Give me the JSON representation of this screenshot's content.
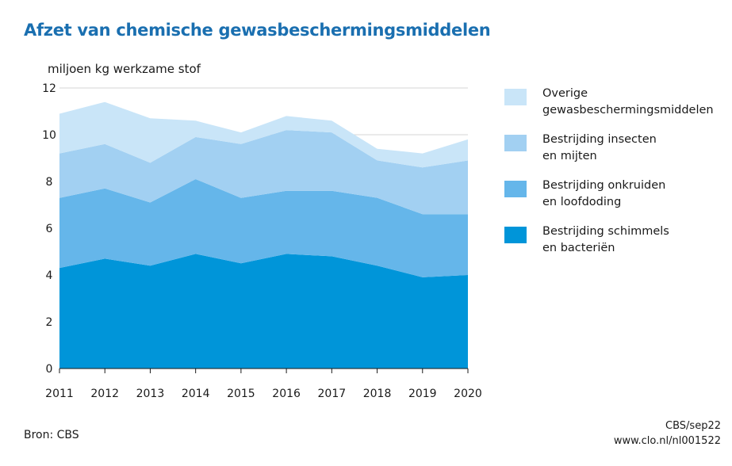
{
  "chart_data": {
    "type": "area",
    "stacked": true,
    "title": "Afzet van chemische gewasbeschermingsmiddelen",
    "ylabel": "miljoen kg werkzame stof",
    "xlabel": "",
    "x": [
      "2011",
      "2012",
      "2013",
      "2014",
      "2015",
      "2016",
      "2017",
      "2018",
      "2019",
      "2020"
    ],
    "ylim": [
      0,
      12
    ],
    "yticks": [
      "0",
      "2",
      "4",
      "6",
      "8",
      "10",
      "12"
    ],
    "grid": true,
    "legend_position": "right",
    "series": [
      {
        "name": "Bestrijding schimmels\nen bacteriën",
        "color": "#0095d9",
        "values": [
          4.3,
          4.7,
          4.4,
          4.9,
          4.5,
          4.9,
          4.8,
          4.4,
          3.9,
          4.0
        ]
      },
      {
        "name": "Bestrijding onkruiden\nen loofdoding",
        "color": "#65b6ea",
        "values": [
          3.0,
          3.0,
          2.7,
          3.2,
          2.8,
          2.7,
          2.8,
          2.9,
          2.7,
          2.6
        ]
      },
      {
        "name": "Bestrijding insecten\nen mijten",
        "color": "#a2d0f2",
        "values": [
          1.9,
          1.9,
          1.7,
          1.8,
          2.3,
          2.6,
          2.5,
          1.6,
          2.0,
          2.3
        ]
      },
      {
        "name": "Overige\ngewasbeschermingsmiddelen",
        "color": "#c9e5f8",
        "values": [
          1.7,
          1.8,
          1.9,
          0.7,
          0.5,
          0.6,
          0.5,
          0.5,
          0.6,
          0.9
        ]
      }
    ]
  },
  "footer": {
    "source": "Bron: CBS",
    "credit_line1": "CBS/sep22",
    "credit_line2": "www.clo.nl/nl001522"
  }
}
